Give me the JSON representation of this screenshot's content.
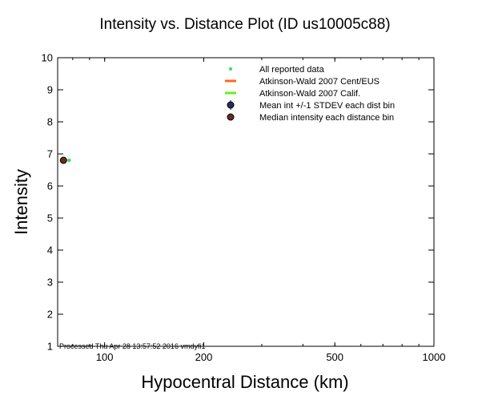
{
  "chart_data": {
    "type": "scatter",
    "title": "Intensity vs. Distance Plot (ID us10005c88)",
    "xlabel": "Hypocentral Distance (km)",
    "ylabel": "Intensity",
    "x_scale": "log",
    "xlim": [
      72,
      1000
    ],
    "ylim": [
      1,
      10
    ],
    "x_ticks": [
      100,
      200,
      500,
      1000
    ],
    "y_ticks": [
      1,
      2,
      3,
      4,
      5,
      6,
      7,
      8,
      9,
      10
    ],
    "grid": false,
    "legend_position": "top-right",
    "legend": [
      {
        "label": "All reported data",
        "marker": "dot",
        "color": "#33dd66"
      },
      {
        "label": "Atkinson-Wald 2007 Cent/EUS",
        "marker": "line",
        "color": "#ff6a1a"
      },
      {
        "label": "Atkinson-Wald 2007 Calif.",
        "marker": "line",
        "color": "#66ee22"
      },
      {
        "label": "Mean int +/-1 STDEV each dist bin",
        "marker": "circle-errorbar",
        "color": "#2a2a66"
      },
      {
        "label": "Median intensity each distance bin",
        "marker": "circle",
        "color": "#6b2a22"
      }
    ],
    "series": [
      {
        "name": "All reported data",
        "kind": "dot",
        "color": "#33dd66",
        "points": [
          {
            "x": 78,
            "y": 6.8
          }
        ]
      },
      {
        "name": "Median intensity each distance bin",
        "kind": "circle",
        "color": "#6b2a22",
        "points": [
          {
            "x": 75,
            "y": 6.8
          }
        ]
      }
    ],
    "annotation": "Processed Thu Apr 28 13:57:52 2016 vmdyfi1"
  }
}
